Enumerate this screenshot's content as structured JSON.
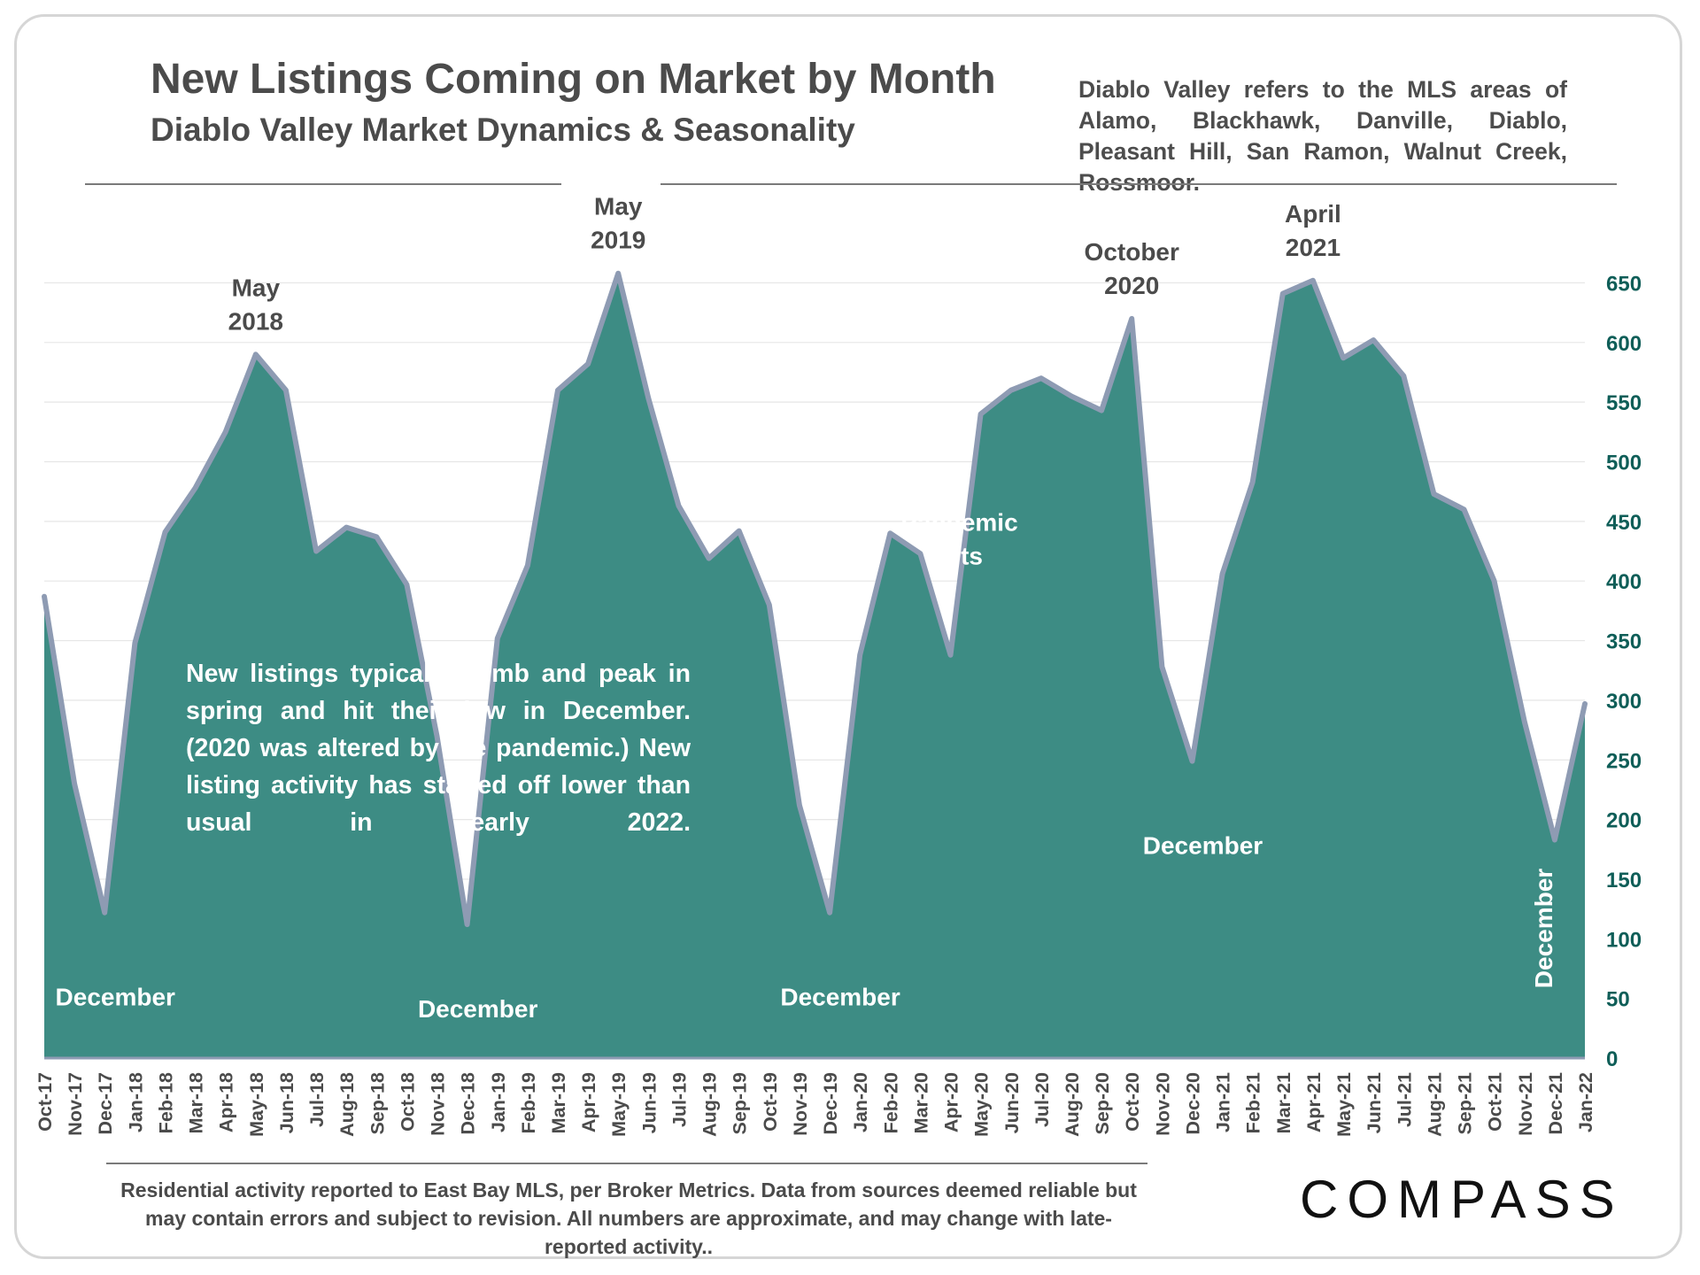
{
  "header": {
    "title": "New Listings Coming on Market by Month",
    "subtitle": "Diablo Valley Market Dynamics & Seasonality",
    "note": "Diablo Valley refers to the MLS areas of Alamo, Blackhawk, Danville, Diablo, Pleasant Hill, San Ramon, Walnut Creek, Rossmoor."
  },
  "annotation_box": {
    "text": "New listings typically climb and peak in spring and hit their low in December. (2020 was altered by the pandemic.) New listing activity has started off lower than usual in early 2022."
  },
  "footer": {
    "disclaimer": "Residential activity reported to East Bay MLS, per Broker Metrics. Data from sources deemed reliable but may contain errors and subject to revision. All numbers are approximate, and may change with late-reported activity.."
  },
  "logo": {
    "text": "COMPASS"
  },
  "colors": {
    "fill": "#3d8c84",
    "line": "#8e9bb3",
    "axis_text": "#0f5e58",
    "text_dark": "#4b4b4b",
    "grid": "#e6e6e6"
  },
  "chart_data": {
    "type": "area",
    "title": "New Listings Coming on Market by Month",
    "xlabel": "",
    "ylabel": "",
    "ylim": [
      0,
      650
    ],
    "yticks": [
      0,
      50,
      100,
      150,
      200,
      250,
      300,
      350,
      400,
      450,
      500,
      550,
      600,
      650
    ],
    "grid": true,
    "y_axis_side": "right",
    "categories": [
      "Oct-17",
      "Nov-17",
      "Dec-17",
      "Jan-18",
      "Feb-18",
      "Mar-18",
      "Apr-18",
      "May-18",
      "Jun-18",
      "Jul-18",
      "Aug-18",
      "Sep-18",
      "Oct-18",
      "Nov-18",
      "Dec-18",
      "Jan-19",
      "Feb-19",
      "Mar-19",
      "Apr-19",
      "May-19",
      "Jun-19",
      "Jul-19",
      "Aug-19",
      "Sep-19",
      "Oct-19",
      "Nov-19",
      "Dec-19",
      "Jan-20",
      "Feb-20",
      "Mar-20",
      "Apr-20",
      "May-20",
      "Jun-20",
      "Jul-20",
      "Aug-20",
      "Sep-20",
      "Oct-20",
      "Nov-20",
      "Dec-20",
      "Jan-21",
      "Feb-21",
      "Mar-21",
      "Apr-21",
      "May-21",
      "Jun-21",
      "Jul-21",
      "Aug-21",
      "Sep-21",
      "Oct-21",
      "Nov-21",
      "Dec-21",
      "Jan-22"
    ],
    "values": [
      387,
      230,
      122,
      348,
      441,
      478,
      525,
      590,
      560,
      425,
      445,
      437,
      397,
      270,
      112,
      352,
      413,
      560,
      582,
      658,
      553,
      463,
      419,
      442,
      380,
      212,
      122,
      338,
      440,
      423,
      338,
      540,
      560,
      570,
      555,
      543,
      620,
      328,
      249,
      406,
      483,
      641,
      652,
      587,
      602,
      572,
      473,
      460,
      400,
      282,
      183,
      297
    ],
    "annotations": [
      {
        "label": [
          "May",
          "2018"
        ],
        "index": 7,
        "position": "above"
      },
      {
        "label": [
          "May",
          "2019"
        ],
        "index": 19,
        "position": "above"
      },
      {
        "label": [
          "October",
          "2020"
        ],
        "index": 36,
        "position": "above"
      },
      {
        "label": [
          "April",
          "2021"
        ],
        "index": 42,
        "position": "above"
      },
      {
        "label": [
          "December"
        ],
        "index": 2,
        "position": "inside"
      },
      {
        "label": [
          "December"
        ],
        "index": 14,
        "position": "inside"
      },
      {
        "label": [
          "December"
        ],
        "index": 26,
        "position": "inside"
      },
      {
        "label": [
          "December"
        ],
        "index": 38,
        "position": "inside"
      },
      {
        "label": [
          "December"
        ],
        "index": 50,
        "position": "inside-vertical"
      },
      {
        "label": [
          "Pandemic",
          "Hits"
        ],
        "index": 30,
        "position": "inside"
      }
    ]
  }
}
